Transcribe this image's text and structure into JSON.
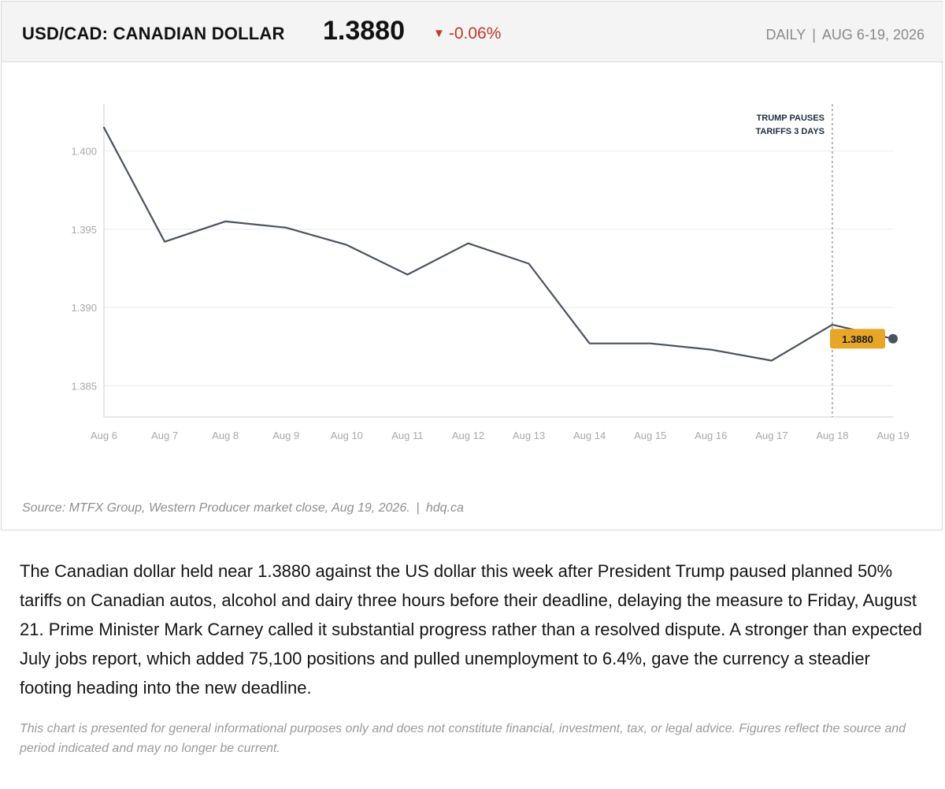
{
  "header": {
    "title": "USD/CAD: CANADIAN DOLLAR",
    "price": "1.3880",
    "change_arrow": "▼",
    "change": "-0.06%",
    "frequency": "DAILY",
    "separator": "|",
    "period": "AUG 6-19, 2026"
  },
  "chart_data": {
    "type": "line",
    "title": "USD/CAD: CANADIAN DOLLAR",
    "categories": [
      "Aug 6",
      "Aug 7",
      "Aug 8",
      "Aug 9",
      "Aug 10",
      "Aug 11",
      "Aug 12",
      "Aug 13",
      "Aug 14",
      "Aug 15",
      "Aug 16",
      "Aug 17",
      "Aug 18",
      "Aug 19"
    ],
    "series": [
      {
        "values": [
          1.4015,
          1.3942,
          1.3955,
          1.3951,
          1.394,
          1.3921,
          1.3941,
          1.3928,
          1.3877,
          1.3877,
          1.3873,
          1.3866,
          1.3889,
          1.388
        ]
      }
    ],
    "ylim": [
      1.383,
      1.403
    ],
    "yticks": [
      1.385,
      1.39,
      1.395,
      1.4
    ],
    "ytick_labels": [
      "1.385",
      "1.390",
      "1.395",
      "1.400"
    ],
    "grid": true,
    "xlabel": "",
    "ylabel": "",
    "last_value_label": "1.3880",
    "annotation": {
      "x": "Aug 18",
      "lines": [
        "TRUMP PAUSES",
        "TARIFFS 3 DAYS"
      ]
    },
    "colors": {
      "line": "#4a5160",
      "grid": "#ececec",
      "axis": "#cfcfcf",
      "tick_label": "#a9a9a9",
      "annotation_text": "#1f2d3d",
      "annotation_line": "#8a8a8a",
      "value_badge": "#e8a628",
      "end_marker": "#4a5160"
    }
  },
  "source": {
    "text": "Source: MTFX Group, Western Producer market close, Aug 19, 2026.",
    "separator": "|",
    "site": "hdq.ca"
  },
  "article": {
    "paragraph": "The Canadian dollar held near 1.3880 against the US dollar this week after President Trump paused planned 50% tariffs on Canadian autos, alcohol and dairy three hours before their deadline, delaying the measure to Friday, August 21. Prime Minister Mark Carney called it substantial progress rather than a resolved dispute. A stronger than expected July jobs report, which added 75,100 positions and pulled unemployment to 6.4%, gave the currency a steadier footing heading into the new deadline."
  },
  "disclaimer": "This chart is presented for general informational purposes only and does not constitute financial, investment, tax, or legal advice. Figures reflect the source and period indicated and may no longer be current."
}
